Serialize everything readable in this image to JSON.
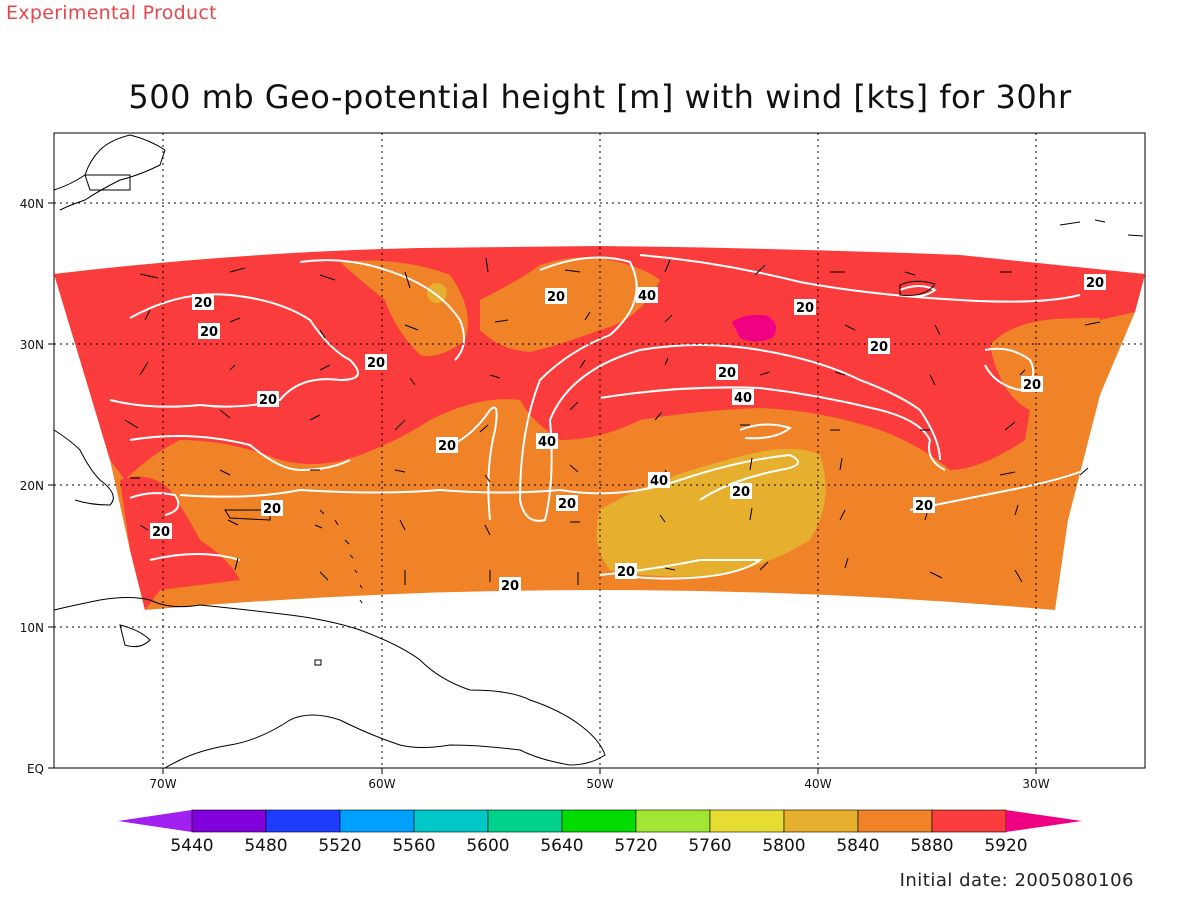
{
  "header": {
    "product_label": "Experimental Product",
    "title": "500 mb Geo-potential height [m] with wind [kts] for 30hr"
  },
  "map": {
    "lat_labels": [
      "40N",
      "30N",
      "20N",
      "10N",
      "EQ"
    ],
    "lon_labels": [
      "70W",
      "60W",
      "50W",
      "40W",
      "30W"
    ],
    "contour_labels": [
      "20",
      "20",
      "20",
      "20",
      "20",
      "40",
      "20",
      "20",
      "40",
      "20",
      "20",
      "40",
      "20",
      "40",
      "20",
      "20",
      "20",
      "20",
      "20",
      "20",
      "20",
      "20"
    ]
  },
  "colorbar": {
    "labels": [
      "5440",
      "5480",
      "5520",
      "5560",
      "5600",
      "5640",
      "5720",
      "5760",
      "5800",
      "5840",
      "5880",
      "5920"
    ],
    "colors": [
      "#a020f0",
      "#8200dc",
      "#1e3cff",
      "#00a0ff",
      "#00c8c8",
      "#00d28c",
      "#00dc00",
      "#a0e632",
      "#e6dc32",
      "#e6af2d",
      "#f08228",
      "#fa3c3c",
      "#f00082"
    ]
  },
  "footer": {
    "initial_date": "Initial date: 2005080106"
  }
}
